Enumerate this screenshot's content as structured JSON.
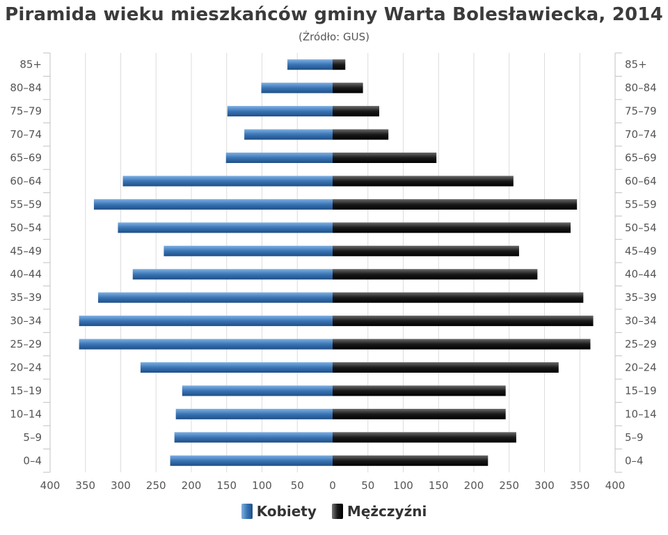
{
  "chart_data": {
    "type": "bar",
    "orientation": "horizontal",
    "layout": "population-pyramid",
    "title": "Piramida wieku mieszkańców gminy Warta Bolesławiecka, 2014",
    "subtitle": "(Źródło: GUS)",
    "categories": [
      "85+",
      "80–84",
      "75–79",
      "70–74",
      "65–69",
      "60–64",
      "55–59",
      "50–54",
      "45–49",
      "40–44",
      "35–39",
      "30–34",
      "25–29",
      "20–24",
      "15–19",
      "10–14",
      "5–9",
      "0–4"
    ],
    "series": [
      {
        "name": "Kobiety",
        "side": "left",
        "color": "#3a75b5",
        "values": [
          64,
          101,
          149,
          125,
          151,
          297,
          338,
          304,
          239,
          283,
          332,
          359,
          359,
          272,
          213,
          222,
          224,
          230
        ]
      },
      {
        "name": "Mężczyźni",
        "side": "right",
        "color": "#1a1a1a",
        "values": [
          18,
          43,
          66,
          79,
          147,
          256,
          346,
          337,
          264,
          290,
          355,
          369,
          365,
          320,
          245,
          245,
          260,
          220
        ]
      }
    ],
    "xlim": [
      -400,
      400
    ],
    "x_ticks": [
      -400,
      -350,
      -300,
      -250,
      -200,
      -150,
      -100,
      -50,
      0,
      50,
      100,
      150,
      200,
      250,
      300,
      350,
      400
    ],
    "x_tick_labels": [
      "400",
      "350",
      "300",
      "250",
      "200",
      "150",
      "100",
      "50",
      "0",
      "50",
      "100",
      "150",
      "200",
      "250",
      "300",
      "350",
      "400"
    ],
    "grid": "vertical",
    "legend_position": "bottom"
  }
}
